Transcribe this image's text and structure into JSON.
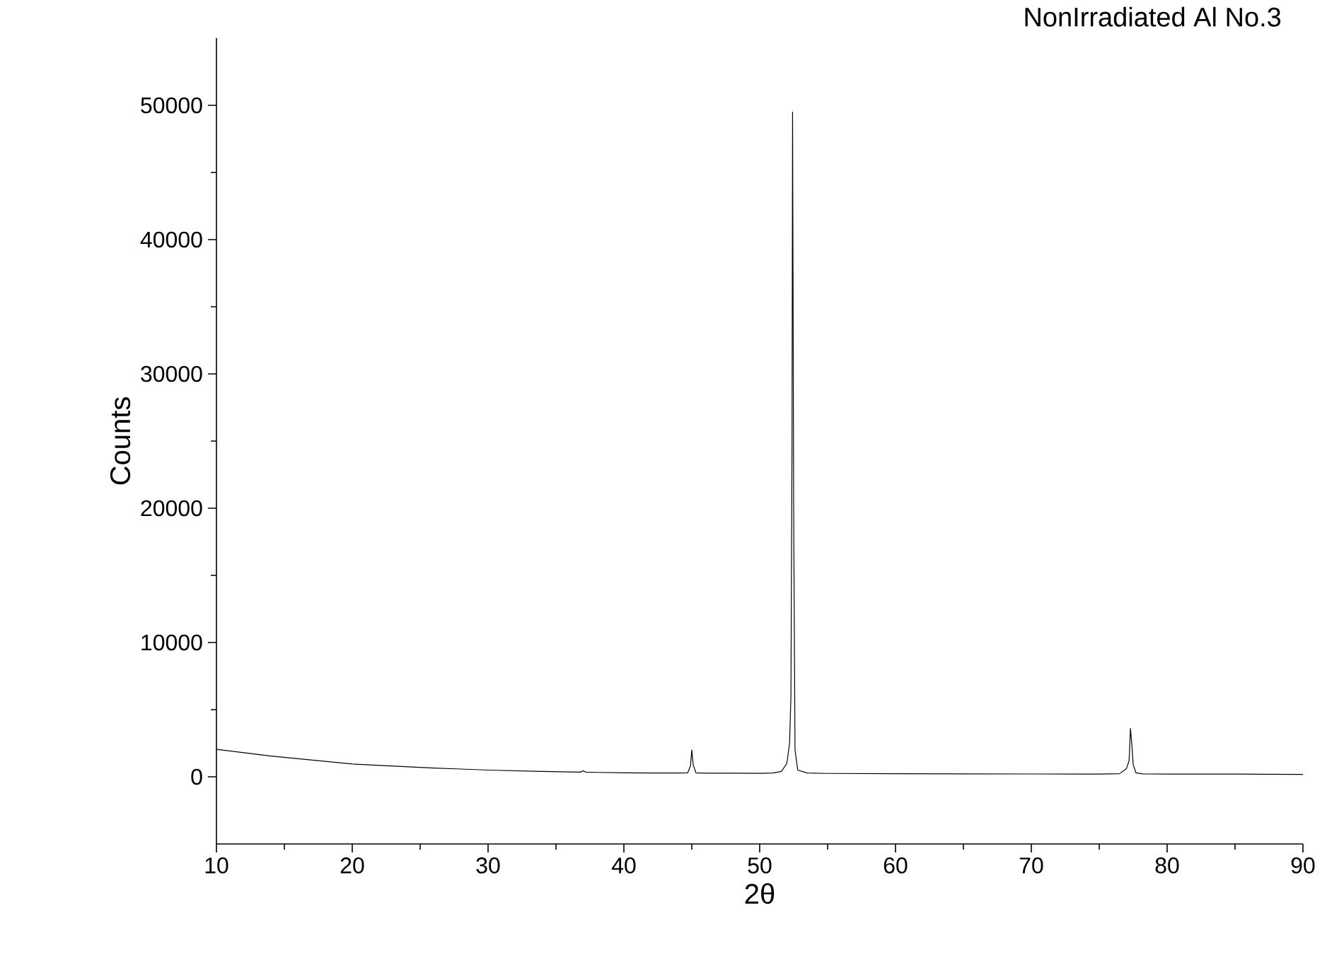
{
  "chart_data": {
    "type": "line",
    "title": "NonIrradiated Al No.3",
    "xlabel": "2θ",
    "ylabel": "Counts",
    "color": "#000000",
    "x": [
      10,
      12,
      14,
      16,
      18,
      20,
      22,
      24,
      26,
      28,
      30,
      32,
      34,
      36,
      36.8,
      37,
      37.2,
      38,
      40,
      42,
      44,
      44.7,
      44.9,
      45.0,
      45.1,
      45.3,
      46,
      48,
      50,
      51,
      51.6,
      52.0,
      52.2,
      52.3,
      52.38,
      52.42,
      52.5,
      52.6,
      52.8,
      53.5,
      55,
      60,
      65,
      70,
      75,
      76.5,
      77.0,
      77.2,
      77.3,
      77.4,
      77.5,
      77.7,
      78.2,
      80,
      85,
      90
    ],
    "values": [
      2050,
      1800,
      1550,
      1350,
      1150,
      950,
      850,
      750,
      650,
      580,
      500,
      450,
      400,
      360,
      350,
      450,
      350,
      330,
      300,
      280,
      280,
      300,
      800,
      2000,
      900,
      300,
      270,
      270,
      260,
      280,
      400,
      1000,
      2500,
      6000,
      25000,
      49500,
      20000,
      2000,
      500,
      280,
      250,
      230,
      220,
      210,
      200,
      230,
      600,
      1200,
      3600,
      2400,
      900,
      300,
      220,
      200,
      200,
      180
    ],
    "xlim": [
      10,
      90
    ],
    "ylim": [
      -5000,
      55000
    ],
    "xticks": [
      10,
      20,
      30,
      40,
      50,
      60,
      70,
      80,
      90
    ],
    "yticks": [
      0,
      10000,
      20000,
      30000,
      40000,
      50000
    ],
    "line_style": "solid",
    "marker": "none",
    "grid": false
  }
}
